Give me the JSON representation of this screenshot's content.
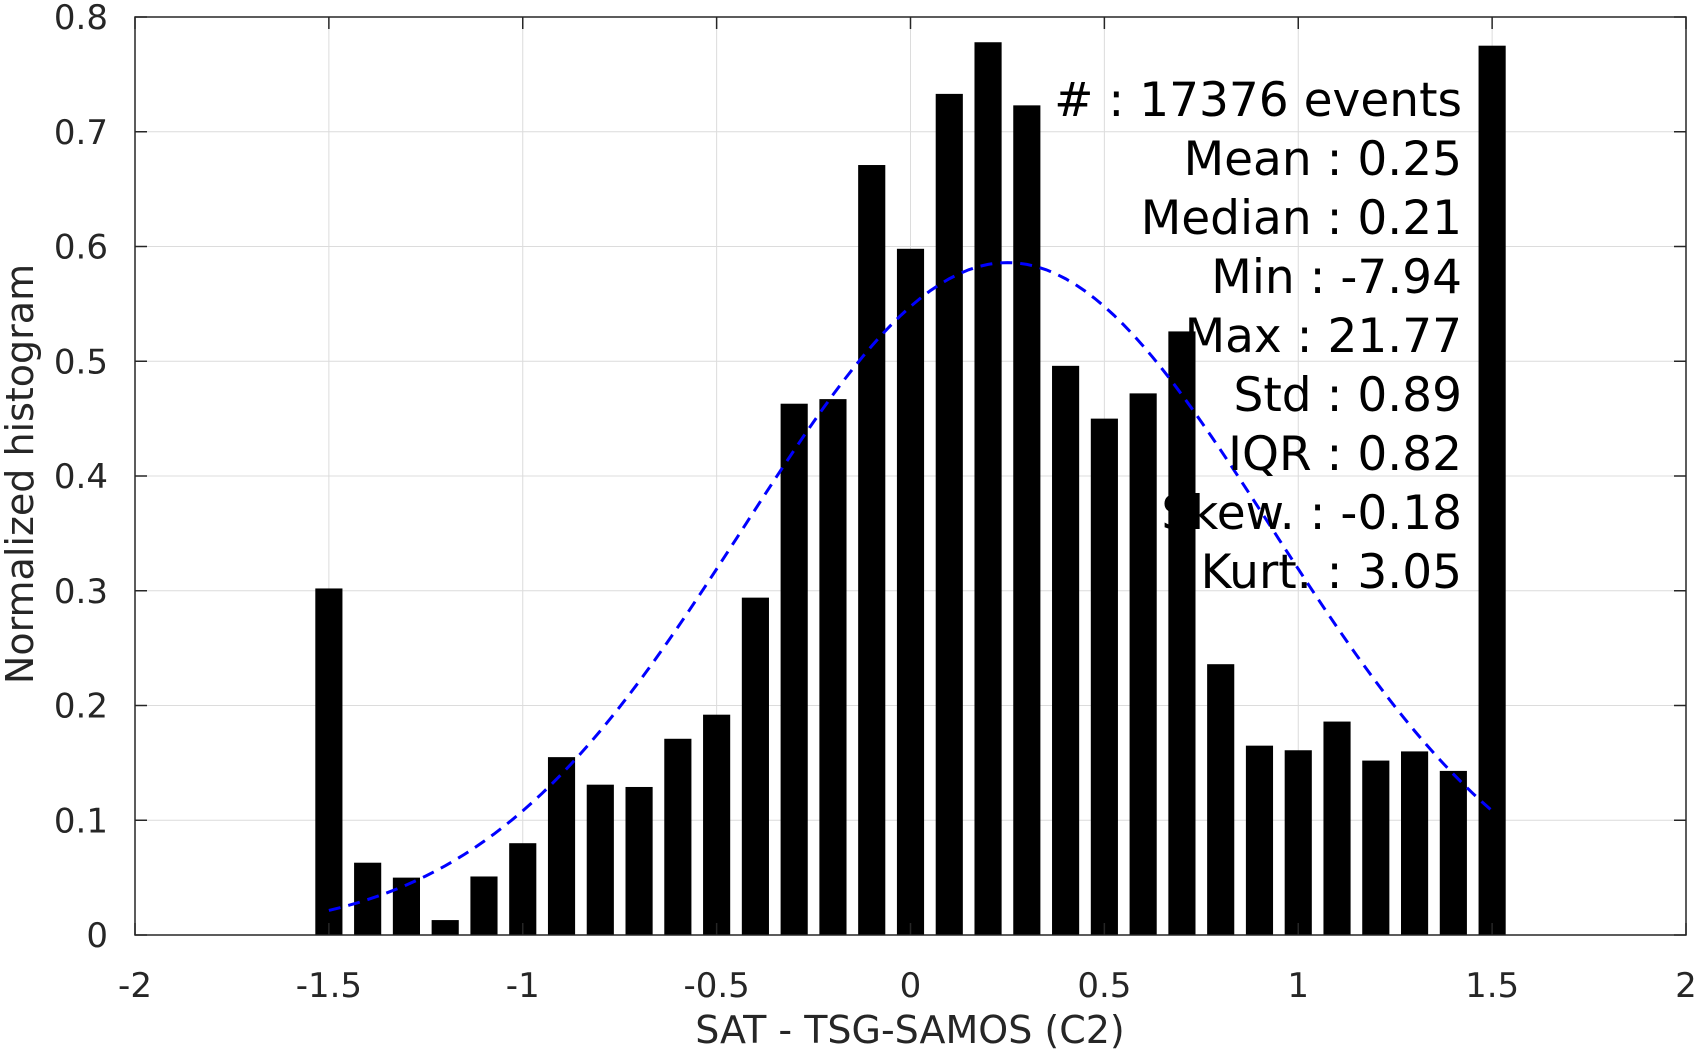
{
  "chart_data": {
    "type": "bar",
    "xlabel": "SAT - TSG-SAMOS (C2)",
    "ylabel": "Normalized histogram",
    "xlim": [
      -2,
      2
    ],
    "ylim": [
      0,
      0.8
    ],
    "x_ticks": [
      -2,
      -1.5,
      -1,
      -0.5,
      0,
      0.5,
      1,
      1.5,
      2
    ],
    "x_tick_labels": [
      "-2",
      "-1.5",
      "-1",
      "-0.5",
      "0",
      "0.5",
      "1",
      "1.5",
      "2"
    ],
    "y_ticks": [
      0,
      0.1,
      0.2,
      0.3,
      0.4,
      0.5,
      0.6,
      0.7,
      0.8
    ],
    "y_tick_labels": [
      "0",
      "0.1",
      "0.2",
      "0.3",
      "0.4",
      "0.5",
      "0.6",
      "0.7",
      "0.8"
    ],
    "grid": true,
    "bar_color": "#000000",
    "bin_width": 0.07,
    "x": [
      -1.5,
      -1.4,
      -1.3,
      -1.2,
      -1.1,
      -1.0,
      -0.9,
      -0.8,
      -0.7,
      -0.6,
      -0.5,
      -0.4,
      -0.3,
      -0.2,
      -0.1,
      0.0,
      0.1,
      0.2,
      0.3,
      0.4,
      0.5,
      0.6,
      0.7,
      0.8,
      0.9,
      1.0,
      1.1,
      1.2,
      1.3,
      1.4,
      1.5
    ],
    "values": [
      0.302,
      0.063,
      0.05,
      0.013,
      0.051,
      0.08,
      0.155,
      0.131,
      0.129,
      0.171,
      0.192,
      0.294,
      0.463,
      0.467,
      0.671,
      0.598,
      0.733,
      0.778,
      0.723,
      0.496,
      0.45,
      0.472,
      0.526,
      0.236,
      0.165,
      0.161,
      0.186,
      0.152,
      0.16,
      0.143,
      0.775
    ],
    "fit_curve": {
      "type": "gaussian",
      "color": "#0000ff",
      "style": "dashed",
      "mean": 0.25,
      "std": 0.68,
      "peak": 0.586,
      "x_range": [
        -1.5,
        1.5
      ]
    },
    "annotations": [
      "#  : 17376 events",
      "Mean : 0.25",
      "Median : 0.21",
      "Min : -7.94",
      "Max : 21.77",
      "Std : 0.89",
      "IQR : 0.82",
      "Skew. : -0.18",
      "Kurt. : 3.05"
    ]
  }
}
